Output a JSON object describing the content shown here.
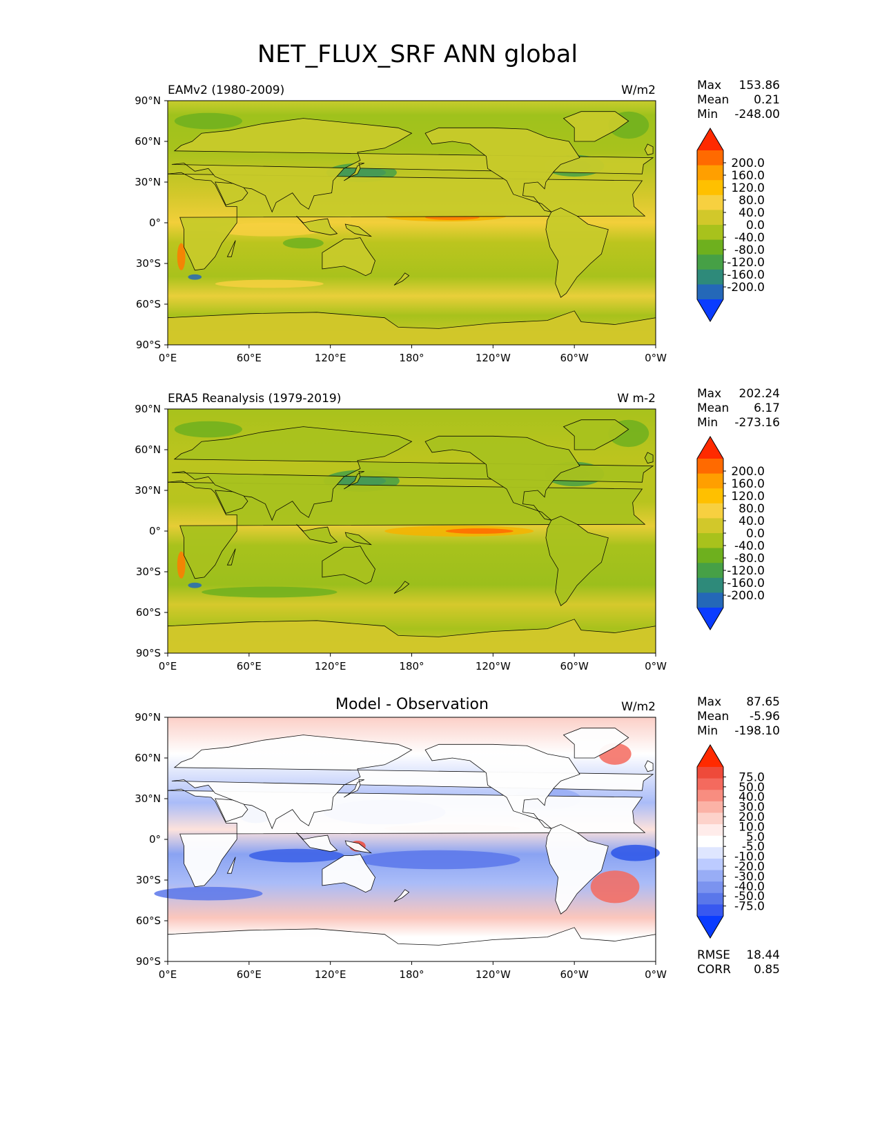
{
  "title": "NET_FLUX_SRF ANN global",
  "x_ticks": [
    "0°E",
    "60°E",
    "120°E",
    "180°",
    "120°W",
    "60°W",
    "0°W"
  ],
  "y_ticks": [
    "90°N",
    "60°N",
    "30°N",
    "0°",
    "30°S",
    "60°S",
    "90°S"
  ],
  "chart_data": [
    {
      "type": "heatmap",
      "title": "EAMv2 (1980-2009)",
      "units": "W/m2",
      "xlim": [
        0,
        360
      ],
      "ylim": [
        -90,
        90
      ],
      "stats": {
        "Max": "153.86",
        "Mean": "0.21",
        "Min": "-248.00"
      },
      "stat_labels": [
        "Max",
        "Mean",
        "Min"
      ],
      "colorbar": {
        "labels": [
          "200.0",
          "160.0",
          "120.0",
          "80.0",
          "40.0",
          "0.0",
          "-40.0",
          "-80.0",
          "-120.0",
          "-160.0",
          "-200.0"
        ],
        "colors": [
          "#ff2a00",
          "#ff6a00",
          "#ff9f00",
          "#ffc000",
          "#f7d040",
          "#d2c82a",
          "#a8c21c",
          "#6eb01e",
          "#46a046",
          "#2e8a7a",
          "#2468b8",
          "#0a3cff"
        ]
      }
    },
    {
      "type": "heatmap",
      "title": "ERA5 Reanalysis (1979-2019)",
      "units": "W m-2",
      "xlim": [
        0,
        360
      ],
      "ylim": [
        -90,
        90
      ],
      "stats": {
        "Max": "202.24",
        "Mean": "6.17",
        "Min": "-273.16"
      },
      "stat_labels": [
        "Max",
        "Mean",
        "Min"
      ],
      "colorbar": {
        "labels": [
          "200.0",
          "160.0",
          "120.0",
          "80.0",
          "40.0",
          "0.0",
          "-40.0",
          "-80.0",
          "-120.0",
          "-160.0",
          "-200.0"
        ],
        "colors": [
          "#ff2a00",
          "#ff6a00",
          "#ff9f00",
          "#ffc000",
          "#f7d040",
          "#d2c82a",
          "#a8c21c",
          "#6eb01e",
          "#46a046",
          "#2e8a7a",
          "#2468b8",
          "#0a3cff"
        ]
      }
    },
    {
      "type": "heatmap",
      "title": "Model - Observation",
      "units": "W/m2",
      "xlim": [
        0,
        360
      ],
      "ylim": [
        -90,
        90
      ],
      "stats": {
        "Max": "87.65",
        "Mean": "-5.96",
        "Min": "-198.10"
      },
      "stat_labels": [
        "Max",
        "Mean",
        "Min"
      ],
      "extra_stats": {
        "RMSE": "18.44",
        "CORR": "0.85"
      },
      "extra_labels": [
        "RMSE",
        "CORR"
      ],
      "colorbar": {
        "labels": [
          "75.0",
          "50.0",
          "40.0",
          "30.0",
          "20.0",
          "10.0",
          "5.0",
          "-5.0",
          "-10.0",
          "-20.0",
          "-30.0",
          "-40.0",
          "-50.0",
          "-75.0"
        ],
        "colors": [
          "#ff2a00",
          "#ee4a3a",
          "#f46a5e",
          "#f88d80",
          "#fbb2a6",
          "#fdd2ca",
          "#ffecea",
          "#ffffff",
          "#dfe6ff",
          "#bccbff",
          "#98adf6",
          "#7b93ef",
          "#5a77ea",
          "#3858f0",
          "#0a3cff"
        ]
      }
    }
  ]
}
